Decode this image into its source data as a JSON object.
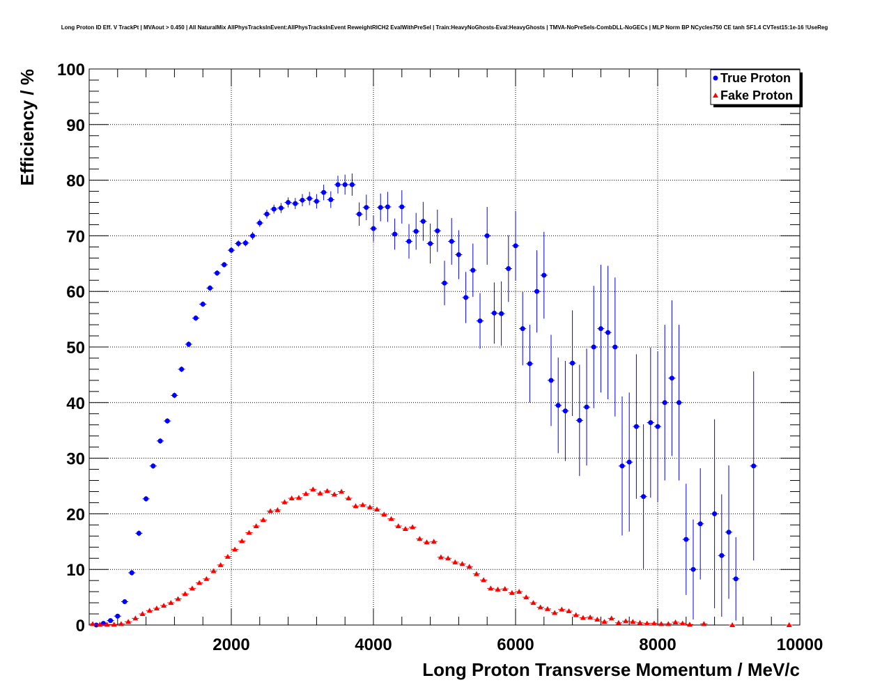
{
  "chart_data": {
    "type": "scatter",
    "title": "Long Proton ID Eff. V TrackPt | MVAout > 0.450 | All NaturalMix AllPhysTracksInEvent:AllPhysTracksInEvent ReweightRICH2 EvalWithPreSel | Train:HeavyNoGhosts-Eval:HeavyGhosts | TMVA-NoPreSels-CombDLL-NoGECs | MLP Norm BP NCycles750 CE tanh SF1.4 CVTest15:1e-16 !UseReg",
    "xlabel": "Long Proton Transverse Momentum / MeV/c",
    "ylabel": "Efficiency / %",
    "xlim": [
      0,
      10000
    ],
    "ylim": [
      0,
      100
    ],
    "x_ticks": [
      "2000",
      "4000",
      "6000",
      "8000",
      "10000"
    ],
    "y_ticks": [
      "0",
      "10",
      "20",
      "30",
      "40",
      "50",
      "60",
      "70",
      "80",
      "90",
      "100"
    ],
    "grid": true,
    "legend_position": "top-right",
    "series": [
      {
        "name": "True Proton",
        "color": "#0000ff",
        "marker": "circle",
        "x": [
          100,
          200,
          300,
          400,
          500,
          600,
          700,
          800,
          900,
          1000,
          1100,
          1200,
          1300,
          1400,
          1500,
          1600,
          1700,
          1800,
          1900,
          2000,
          2100,
          2200,
          2300,
          2400,
          2500,
          2600,
          2700,
          2800,
          2900,
          3000,
          3100,
          3200,
          3300,
          3400,
          3500,
          3600,
          3700,
          3800,
          3900,
          4000,
          4100,
          4200,
          4300,
          4400,
          4500,
          4600,
          4700,
          4800,
          4900,
          5000,
          5100,
          5200,
          5300,
          5400,
          5500,
          5600,
          5700,
          5800,
          5900,
          6000,
          6100,
          6200,
          6300,
          6400,
          6500,
          6600,
          6700,
          6800,
          6900,
          7000,
          7100,
          7200,
          7300,
          7400,
          7500,
          7600,
          7700,
          7800,
          7900,
          8000,
          8100,
          8200,
          8300,
          8400,
          8500,
          8600,
          8800,
          8900,
          9000,
          9100,
          9350
        ],
        "y": [
          0.0,
          0.3,
          0.8,
          1.6,
          4.2,
          9.4,
          16.5,
          22.7,
          28.6,
          33.1,
          36.7,
          41.3,
          46.0,
          50.5,
          55.2,
          57.7,
          60.6,
          63.3,
          64.8,
          67.4,
          68.6,
          68.7,
          70.0,
          72.3,
          73.9,
          74.8,
          75.0,
          76.0,
          75.8,
          76.4,
          76.7,
          76.2,
          77.8,
          76.5,
          79.2,
          79.2,
          79.2,
          73.9,
          75.1,
          71.3,
          75.1,
          75.2,
          70.3,
          75.2,
          69.0,
          70.8,
          72.6,
          68.6,
          70.9,
          61.5,
          69.0,
          66.6,
          58.9,
          63.8,
          54.7,
          70.0,
          56.1,
          56.0,
          64.1,
          68.2,
          53.3,
          47.0,
          60.0,
          62.9,
          44.0,
          39.5,
          38.5,
          47.1,
          36.8,
          39.2,
          50.0,
          53.3,
          52.6,
          50.0,
          28.6,
          29.3,
          35.7,
          23.1,
          36.4,
          35.7,
          40.0,
          44.4,
          40.0,
          15.4,
          10.0,
          18.2,
          20.0,
          12.5,
          16.7,
          8.3,
          28.6
        ],
        "yerr": [
          0.1,
          0.2,
          0.3,
          0.4,
          0.4,
          0.5,
          0.5,
          0.5,
          0.5,
          0.5,
          0.5,
          0.5,
          0.5,
          0.5,
          0.5,
          0.5,
          0.5,
          0.5,
          0.5,
          0.6,
          0.6,
          0.6,
          0.7,
          0.7,
          0.8,
          0.8,
          0.9,
          0.9,
          1.0,
          1.1,
          1.2,
          1.3,
          1.4,
          1.5,
          1.6,
          1.8,
          2.0,
          2.1,
          2.3,
          2.4,
          2.5,
          2.7,
          2.8,
          3.0,
          3.1,
          3.3,
          3.5,
          3.6,
          3.8,
          4.0,
          4.2,
          4.4,
          4.6,
          4.8,
          5.0,
          5.2,
          5.5,
          5.8,
          6.0,
          6.3,
          6.6,
          7.0,
          7.4,
          7.8,
          8.2,
          8.6,
          9.0,
          9.5,
          10.0,
          10.5,
          11.0,
          11.5,
          12.0,
          12.5,
          12.5,
          12.5,
          13.0,
          13.0,
          13.5,
          13.5,
          14.0,
          14.0,
          14.0,
          10.0,
          9.0,
          10.0,
          17.0,
          11.0,
          12.0,
          7.5,
          17.0
        ]
      },
      {
        "name": "Fake Proton",
        "color": "#ff0000",
        "marker": "triangle",
        "x": [
          50,
          150,
          250,
          350,
          450,
          550,
          650,
          750,
          850,
          950,
          1050,
          1150,
          1250,
          1350,
          1450,
          1550,
          1650,
          1750,
          1850,
          1950,
          2050,
          2150,
          2250,
          2350,
          2450,
          2550,
          2650,
          2750,
          2850,
          2950,
          3050,
          3150,
          3250,
          3350,
          3450,
          3550,
          3650,
          3750,
          3850,
          3950,
          4050,
          4150,
          4250,
          4350,
          4450,
          4550,
          4650,
          4750,
          4850,
          4950,
          5050,
          5150,
          5250,
          5350,
          5450,
          5550,
          5650,
          5750,
          5850,
          5950,
          6050,
          6150,
          6250,
          6350,
          6450,
          6550,
          6650,
          6750,
          6850,
          6950,
          7050,
          7150,
          7250,
          7350,
          7450,
          7550,
          7650,
          7750,
          7850,
          7950,
          8050,
          8150,
          8250,
          8350,
          8450,
          8650,
          9050,
          9850
        ],
        "y": [
          0.2,
          0.1,
          0.1,
          0.1,
          0.2,
          0.6,
          1.2,
          2.0,
          2.6,
          3.0,
          3.5,
          4.0,
          4.7,
          5.6,
          6.6,
          7.6,
          8.3,
          9.7,
          10.8,
          12.3,
          13.6,
          15.1,
          16.6,
          17.8,
          18.9,
          20.5,
          20.7,
          22.1,
          22.8,
          22.9,
          23.6,
          24.4,
          23.7,
          24.1,
          23.5,
          24.0,
          22.8,
          21.4,
          21.6,
          21.2,
          20.8,
          19.9,
          19.1,
          17.8,
          17.3,
          17.6,
          15.5,
          14.9,
          15.0,
          12.2,
          12.0,
          11.3,
          11.0,
          10.5,
          9.2,
          8.1,
          6.6,
          6.4,
          6.5,
          5.8,
          6.0,
          5.0,
          4.0,
          3.2,
          2.9,
          2.2,
          2.8,
          2.5,
          1.8,
          1.3,
          1.4,
          1.0,
          0.6,
          1.2,
          0.4,
          0.7,
          0.6,
          0.4,
          0.3,
          0.3,
          0.2,
          0.2,
          0.5,
          0.3,
          0.1,
          0.2,
          0.0,
          0.0
        ],
        "yerr": [
          0.1,
          0.1,
          0.1,
          0.1,
          0.1,
          0.2,
          0.2,
          0.2,
          0.2,
          0.2,
          0.2,
          0.2,
          0.2,
          0.2,
          0.3,
          0.3,
          0.3,
          0.3,
          0.3,
          0.3,
          0.3,
          0.3,
          0.3,
          0.3,
          0.3,
          0.3,
          0.3,
          0.4,
          0.4,
          0.4,
          0.4,
          0.4,
          0.4,
          0.4,
          0.4,
          0.4,
          0.4,
          0.4,
          0.4,
          0.4,
          0.4,
          0.4,
          0.4,
          0.4,
          0.4,
          0.4,
          0.4,
          0.4,
          0.4,
          0.4,
          0.4,
          0.4,
          0.4,
          0.4,
          0.4,
          0.4,
          0.4,
          0.4,
          0.4,
          0.4,
          0.4,
          0.4,
          0.3,
          0.3,
          0.3,
          0.3,
          0.3,
          0.3,
          0.3,
          0.3,
          0.3,
          0.2,
          0.2,
          0.2,
          0.2,
          0.2,
          0.2,
          0.2,
          0.2,
          0.2,
          0.2,
          0.2,
          0.2,
          0.2,
          0.1,
          0.1,
          0.1,
          0.1
        ]
      }
    ]
  }
}
